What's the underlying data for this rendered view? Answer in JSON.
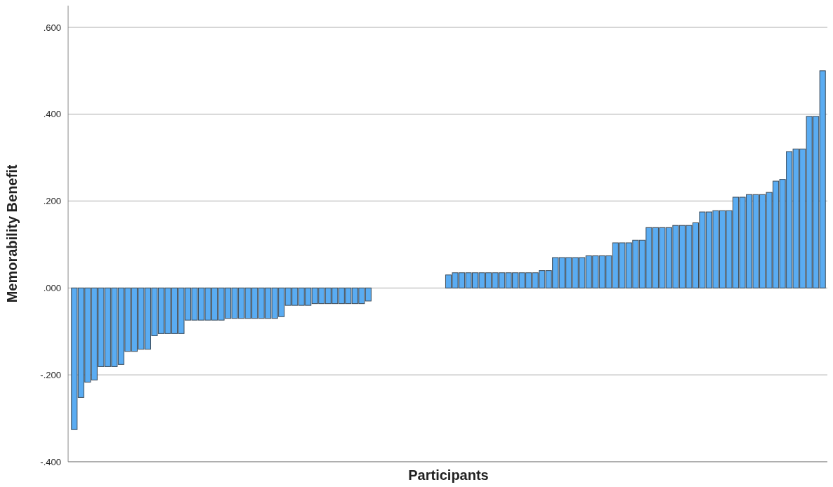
{
  "chart_data": {
    "type": "bar",
    "xlabel": "Participants",
    "ylabel": "Memorability Benefit",
    "categories": [
      null,
      null,
      null,
      null,
      null,
      null,
      null,
      null,
      null,
      null,
      null,
      null,
      null,
      null,
      null,
      null,
      null,
      null,
      null,
      null,
      null,
      null,
      null,
      null,
      null,
      null,
      null,
      null,
      null,
      null,
      null,
      null,
      null,
      null,
      null,
      null,
      null,
      null,
      null,
      null,
      null,
      null,
      null,
      null,
      null,
      null,
      null,
      null,
      null,
      null,
      null,
      null,
      null,
      null,
      null,
      null,
      null,
      null,
      null,
      null,
      null,
      null,
      null,
      null,
      null,
      null,
      null,
      null,
      null,
      null,
      null,
      null,
      null,
      null,
      null,
      null,
      null,
      null,
      null,
      null,
      null,
      null,
      null,
      null,
      null,
      null,
      null,
      null,
      null,
      null,
      null,
      null,
      null,
      null,
      null,
      null,
      null,
      null,
      null,
      null,
      null,
      null,
      null,
      null,
      null,
      null,
      null,
      null,
      null,
      null,
      null,
      null,
      null
    ],
    "values": [
      -0.326,
      -0.252,
      -0.217,
      -0.212,
      -0.181,
      -0.181,
      -0.181,
      -0.176,
      -0.146,
      -0.146,
      -0.141,
      -0.141,
      -0.11,
      -0.105,
      -0.105,
      -0.105,
      -0.105,
      -0.074,
      -0.074,
      -0.074,
      -0.074,
      -0.074,
      -0.074,
      -0.07,
      -0.07,
      -0.07,
      -0.07,
      -0.07,
      -0.07,
      -0.07,
      -0.07,
      -0.066,
      -0.04,
      -0.04,
      -0.04,
      -0.04,
      -0.036,
      -0.036,
      -0.036,
      -0.036,
      -0.036,
      -0.036,
      -0.036,
      -0.036,
      -0.03,
      0,
      0,
      0,
      0,
      0,
      0,
      0,
      0,
      0,
      0,
      0,
      0.03,
      0.035,
      0.035,
      0.035,
      0.035,
      0.035,
      0.035,
      0.035,
      0.035,
      0.035,
      0.035,
      0.035,
      0.035,
      0.035,
      0.04,
      0.04,
      0.07,
      0.07,
      0.07,
      0.07,
      0.07,
      0.074,
      0.074,
      0.074,
      0.074,
      0.104,
      0.104,
      0.104,
      0.11,
      0.11,
      0.139,
      0.139,
      0.139,
      0.139,
      0.144,
      0.144,
      0.144,
      0.15,
      0.175,
      0.175,
      0.178,
      0.178,
      0.178,
      0.209,
      0.209,
      0.215,
      0.215,
      0.215,
      0.22,
      0.246,
      0.25,
      0.314,
      0.32,
      0.32,
      0.395,
      0.395,
      0.5
    ],
    "color": "#5aacf2",
    "ylim": [
      -0.4,
      0.65
    ],
    "yticks": [
      {
        "value": -0.4,
        "label": "-.400"
      },
      {
        "value": -0.2,
        "label": "-.200"
      },
      {
        "value": 0,
        "label": ".000"
      },
      {
        "value": 0.2,
        "label": ".200"
      },
      {
        "value": 0.4,
        "label": ".400"
      },
      {
        "value": 0.6,
        "label": ".600"
      }
    ],
    "grid": "y"
  }
}
